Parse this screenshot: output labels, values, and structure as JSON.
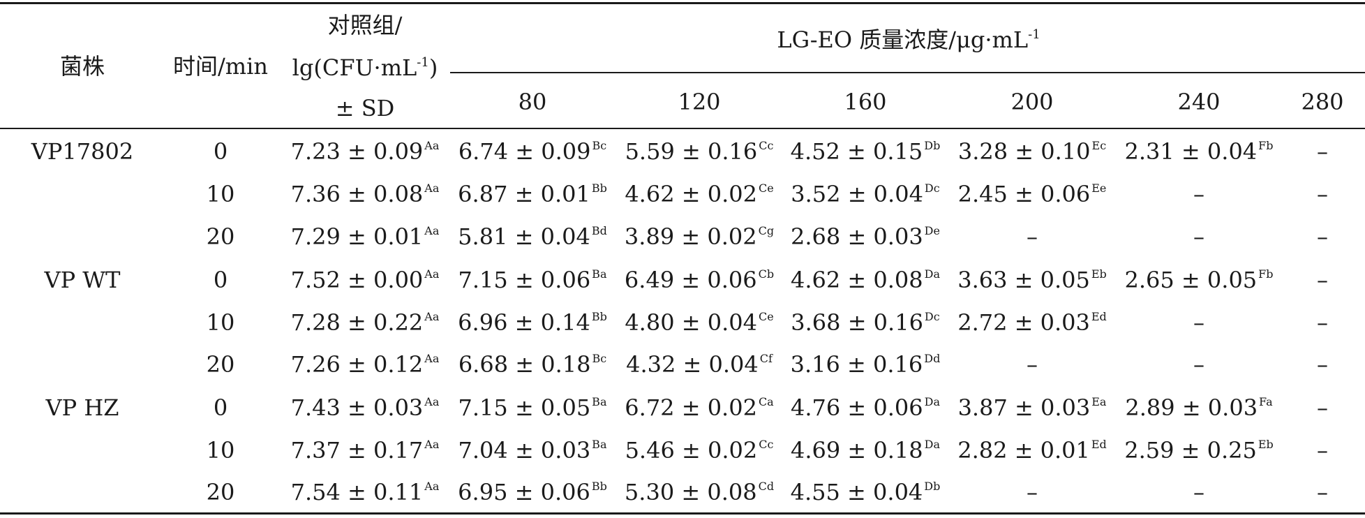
{
  "table": {
    "headers": {
      "strain": "菌株",
      "time": "时间/min",
      "control_line1": "对照组/",
      "control_line2_prefix": "lg(CFU·mL",
      "control_line2_sup": "-1",
      "control_line2_suffix": ")",
      "control_line3": "± SD",
      "conc_prefix": "LG-EO 质量浓度/μg·mL",
      "conc_sup": "-1",
      "concentrations": [
        "80",
        "120",
        "160",
        "200",
        "240",
        "280"
      ]
    },
    "rows": [
      {
        "strain": "VP17802",
        "time": "0",
        "control": {
          "v": "7.23 ± 0.09",
          "s": "Aa"
        },
        "cells": [
          {
            "v": "6.74 ± 0.09",
            "s": "Bc"
          },
          {
            "v": "5.59 ± 0.16",
            "s": "Cc"
          },
          {
            "v": "4.52 ± 0.15",
            "s": "Db"
          },
          {
            "v": "3.28 ± 0.10",
            "s": "Ec"
          },
          {
            "v": "2.31 ± 0.04",
            "s": "Fb"
          },
          {
            "v": "–",
            "s": ""
          }
        ]
      },
      {
        "strain": "",
        "time": "10",
        "control": {
          "v": "7.36 ± 0.08",
          "s": "Aa"
        },
        "cells": [
          {
            "v": "6.87 ± 0.01",
            "s": "Bb"
          },
          {
            "v": "4.62 ± 0.02",
            "s": "Ce"
          },
          {
            "v": "3.52 ± 0.04",
            "s": "Dc"
          },
          {
            "v": "2.45 ± 0.06",
            "s": "Ee"
          },
          {
            "v": "–",
            "s": ""
          },
          {
            "v": "–",
            "s": ""
          }
        ]
      },
      {
        "strain": "",
        "time": "20",
        "control": {
          "v": "7.29 ± 0.01",
          "s": "Aa"
        },
        "cells": [
          {
            "v": "5.81 ± 0.04",
            "s": "Bd"
          },
          {
            "v": "3.89 ± 0.02",
            "s": "Cg"
          },
          {
            "v": "2.68 ± 0.03",
            "s": "De"
          },
          {
            "v": "–",
            "s": ""
          },
          {
            "v": "–",
            "s": ""
          },
          {
            "v": "–",
            "s": ""
          }
        ]
      },
      {
        "strain": "VP WT",
        "time": "0",
        "control": {
          "v": "7.52 ± 0.00",
          "s": "Aa"
        },
        "cells": [
          {
            "v": "7.15 ± 0.06",
            "s": "Ba"
          },
          {
            "v": "6.49 ± 0.06",
            "s": "Cb"
          },
          {
            "v": "4.62 ± 0.08",
            "s": "Da"
          },
          {
            "v": "3.63 ± 0.05",
            "s": "Eb"
          },
          {
            "v": "2.65 ± 0.05",
            "s": "Fb"
          },
          {
            "v": "–",
            "s": ""
          }
        ]
      },
      {
        "strain": "",
        "time": "10",
        "control": {
          "v": "7.28 ± 0.22",
          "s": "Aa"
        },
        "cells": [
          {
            "v": "6.96 ± 0.14",
            "s": "Bb"
          },
          {
            "v": "4.80 ± 0.04",
            "s": "Ce"
          },
          {
            "v": "3.68 ± 0.16",
            "s": "Dc"
          },
          {
            "v": "2.72 ± 0.03",
            "s": "Ed"
          },
          {
            "v": "–",
            "s": ""
          },
          {
            "v": "–",
            "s": ""
          }
        ]
      },
      {
        "strain": "",
        "time": "20",
        "control": {
          "v": "7.26 ± 0.12",
          "s": "Aa"
        },
        "cells": [
          {
            "v": "6.68 ± 0.18",
            "s": "Bc"
          },
          {
            "v": "4.32 ± 0.04",
            "s": "Cf"
          },
          {
            "v": "3.16 ± 0.16",
            "s": "Dd"
          },
          {
            "v": "–",
            "s": ""
          },
          {
            "v": "–",
            "s": ""
          },
          {
            "v": "–",
            "s": ""
          }
        ]
      },
      {
        "strain": "VP HZ",
        "time": "0",
        "control": {
          "v": "7.43 ± 0.03",
          "s": "Aa"
        },
        "cells": [
          {
            "v": "7.15 ± 0.05",
            "s": "Ba"
          },
          {
            "v": "6.72 ± 0.02",
            "s": "Ca"
          },
          {
            "v": "4.76 ± 0.06",
            "s": "Da"
          },
          {
            "v": "3.87 ± 0.03",
            "s": "Ea"
          },
          {
            "v": "2.89 ± 0.03",
            "s": "Fa"
          },
          {
            "v": "–",
            "s": ""
          }
        ]
      },
      {
        "strain": "",
        "time": "10",
        "control": {
          "v": "7.37 ± 0.17",
          "s": "Aa"
        },
        "cells": [
          {
            "v": "7.04 ± 0.03",
            "s": "Ba"
          },
          {
            "v": "5.46 ± 0.02",
            "s": "Cc"
          },
          {
            "v": "4.69 ± 0.18",
            "s": "Da"
          },
          {
            "v": "2.82 ± 0.01",
            "s": "Ed"
          },
          {
            "v": "2.59 ± 0.25",
            "s": "Eb"
          },
          {
            "v": "–",
            "s": ""
          }
        ]
      },
      {
        "strain": "",
        "time": "20",
        "control": {
          "v": "7.54 ± 0.11",
          "s": "Aa"
        },
        "cells": [
          {
            "v": "6.95 ± 0.06",
            "s": "Bb"
          },
          {
            "v": "5.30 ± 0.08",
            "s": "Cd"
          },
          {
            "v": "4.55 ± 0.04",
            "s": "Db"
          },
          {
            "v": "–",
            "s": ""
          },
          {
            "v": "–",
            "s": ""
          },
          {
            "v": "–",
            "s": ""
          }
        ]
      }
    ]
  }
}
